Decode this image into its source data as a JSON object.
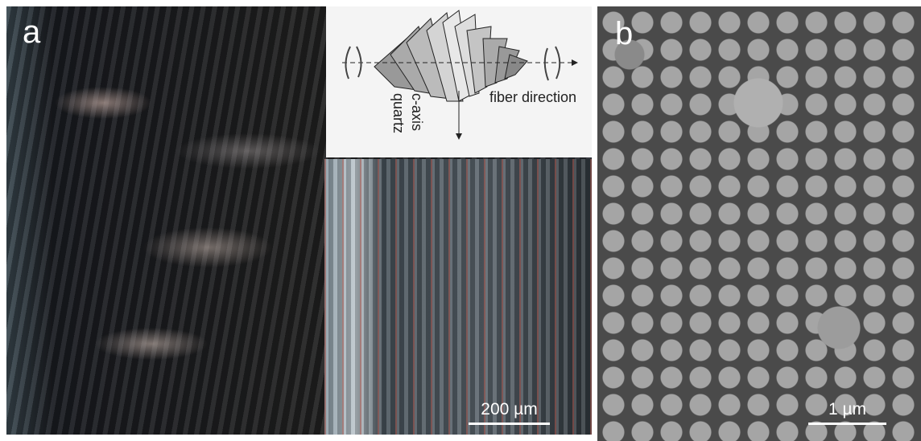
{
  "panels": [
    {
      "label": "a",
      "scale_bar": "200 µm",
      "inset": {
        "direction_label": "fiber direction",
        "axis_label_1": "c-axis",
        "axis_label_2": "quartz"
      }
    },
    {
      "label": "b",
      "scale_bar": "1 µm"
    }
  ]
}
